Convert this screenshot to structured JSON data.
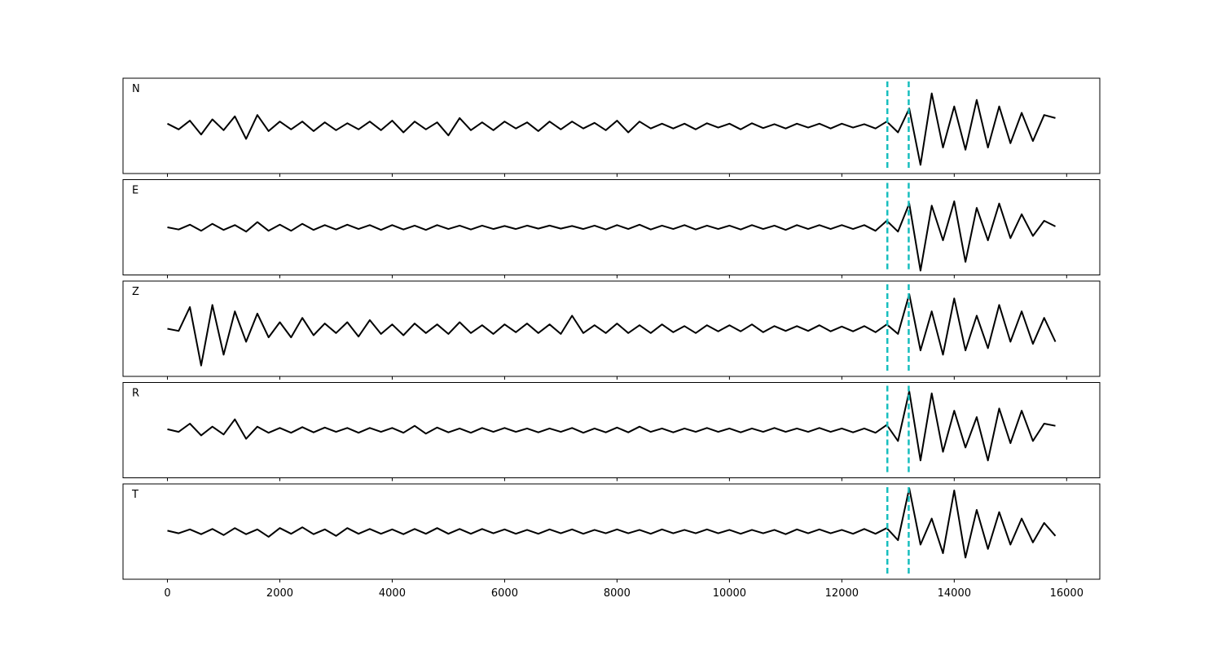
{
  "chart_data": {
    "type": "line",
    "x": [
      0,
      200,
      400,
      600,
      800,
      1000,
      1200,
      1400,
      1600,
      1800,
      2000,
      2200,
      2400,
      2600,
      2800,
      3000,
      3200,
      3400,
      3600,
      3800,
      4000,
      4200,
      4400,
      4600,
      4800,
      5000,
      5200,
      5400,
      5600,
      5800,
      6000,
      6200,
      6400,
      6600,
      6800,
      7000,
      7200,
      7400,
      7600,
      7800,
      8000,
      8200,
      8400,
      8600,
      8800,
      9000,
      9200,
      9400,
      9600,
      9800,
      10000,
      10200,
      10400,
      10600,
      10800,
      11000,
      11200,
      11400,
      11600,
      11800,
      12000,
      12200,
      12400,
      12600,
      12800,
      13000,
      13200,
      13400,
      13600,
      13800,
      14000,
      14200,
      14400,
      14600,
      14800,
      15000,
      15200,
      15400,
      15600,
      15800
    ],
    "series": [
      {
        "name": "N",
        "color": "#000000",
        "values": [
          0.05,
          -0.08,
          0.12,
          -0.2,
          0.15,
          -0.1,
          0.22,
          -0.3,
          0.25,
          -0.12,
          0.1,
          -0.08,
          0.1,
          -0.12,
          0.08,
          -0.1,
          0.06,
          -0.08,
          0.1,
          -0.1,
          0.12,
          -0.15,
          0.1,
          -0.08,
          0.08,
          -0.22,
          0.18,
          -0.1,
          0.08,
          -0.1,
          0.1,
          -0.06,
          0.08,
          -0.12,
          0.1,
          -0.08,
          0.1,
          -0.06,
          0.07,
          -0.1,
          0.12,
          -0.15,
          0.1,
          -0.06,
          0.05,
          -0.06,
          0.05,
          -0.08,
          0.06,
          -0.04,
          0.05,
          -0.08,
          0.06,
          -0.05,
          0.04,
          -0.06,
          0.05,
          -0.04,
          0.05,
          -0.06,
          0.05,
          -0.04,
          0.04,
          -0.06,
          0.1,
          -0.15,
          0.4,
          -0.9,
          0.75,
          -0.5,
          0.45,
          -0.55,
          0.6,
          -0.5,
          0.45,
          -0.4,
          0.3,
          -0.35,
          0.25,
          0.18
        ]
      },
      {
        "name": "E",
        "color": "#000000",
        "values": [
          0.0,
          -0.05,
          0.06,
          -0.08,
          0.08,
          -0.06,
          0.05,
          -0.1,
          0.12,
          -0.08,
          0.06,
          -0.08,
          0.08,
          -0.06,
          0.05,
          -0.05,
          0.06,
          -0.04,
          0.05,
          -0.06,
          0.05,
          -0.05,
          0.04,
          -0.06,
          0.05,
          -0.04,
          0.04,
          -0.05,
          0.04,
          -0.04,
          0.03,
          -0.04,
          0.04,
          -0.03,
          0.04,
          -0.03,
          0.03,
          -0.04,
          0.04,
          -0.05,
          0.05,
          -0.04,
          0.06,
          -0.05,
          0.04,
          -0.04,
          0.05,
          -0.05,
          0.04,
          -0.04,
          0.04,
          -0.05,
          0.05,
          -0.04,
          0.04,
          -0.06,
          0.05,
          -0.04,
          0.05,
          -0.04,
          0.05,
          -0.04,
          0.05,
          -0.08,
          0.15,
          -0.1,
          0.55,
          -1.0,
          0.5,
          -0.3,
          0.6,
          -0.8,
          0.45,
          -0.3,
          0.55,
          -0.25,
          0.3,
          -0.2,
          0.15,
          0.02
        ]
      },
      {
        "name": "Z",
        "color": "#000000",
        "values": [
          0.0,
          -0.05,
          0.5,
          -0.85,
          0.55,
          -0.6,
          0.4,
          -0.3,
          0.35,
          -0.2,
          0.15,
          -0.2,
          0.25,
          -0.15,
          0.12,
          -0.1,
          0.15,
          -0.18,
          0.2,
          -0.12,
          0.1,
          -0.15,
          0.12,
          -0.1,
          0.1,
          -0.12,
          0.15,
          -0.1,
          0.08,
          -0.12,
          0.1,
          -0.08,
          0.12,
          -0.1,
          0.1,
          -0.12,
          0.3,
          -0.1,
          0.08,
          -0.1,
          0.12,
          -0.1,
          0.08,
          -0.1,
          0.1,
          -0.08,
          0.06,
          -0.1,
          0.08,
          -0.06,
          0.08,
          -0.06,
          0.1,
          -0.08,
          0.06,
          -0.05,
          0.06,
          -0.05,
          0.08,
          -0.06,
          0.05,
          -0.06,
          0.06,
          -0.08,
          0.1,
          -0.12,
          0.8,
          -0.5,
          0.4,
          -0.6,
          0.7,
          -0.5,
          0.3,
          -0.45,
          0.55,
          -0.3,
          0.4,
          -0.35,
          0.25,
          -0.3
        ]
      },
      {
        "name": "R",
        "color": "#000000",
        "values": [
          0.02,
          -0.04,
          0.15,
          -0.12,
          0.08,
          -0.1,
          0.25,
          -0.2,
          0.08,
          -0.06,
          0.05,
          -0.06,
          0.07,
          -0.05,
          0.06,
          -0.04,
          0.05,
          -0.06,
          0.05,
          -0.04,
          0.05,
          -0.06,
          0.1,
          -0.08,
          0.06,
          -0.05,
          0.04,
          -0.06,
          0.05,
          -0.04,
          0.05,
          -0.04,
          0.04,
          -0.05,
          0.04,
          -0.04,
          0.05,
          -0.06,
          0.04,
          -0.05,
          0.06,
          -0.05,
          0.08,
          -0.04,
          0.04,
          -0.05,
          0.04,
          -0.04,
          0.05,
          -0.04,
          0.04,
          -0.05,
          0.04,
          -0.04,
          0.05,
          -0.04,
          0.04,
          -0.04,
          0.05,
          -0.04,
          0.04,
          -0.05,
          0.04,
          -0.06,
          0.12,
          -0.25,
          0.9,
          -0.7,
          0.85,
          -0.5,
          0.45,
          -0.4,
          0.3,
          -0.7,
          0.5,
          -0.3,
          0.45,
          -0.25,
          0.15,
          0.1
        ]
      },
      {
        "name": "T",
        "color": "#000000",
        "values": [
          0.02,
          -0.04,
          0.05,
          -0.06,
          0.06,
          -0.08,
          0.08,
          -0.06,
          0.05,
          -0.12,
          0.08,
          -0.05,
          0.1,
          -0.06,
          0.05,
          -0.1,
          0.08,
          -0.05,
          0.06,
          -0.05,
          0.05,
          -0.06,
          0.06,
          -0.05,
          0.08,
          -0.05,
          0.06,
          -0.05,
          0.06,
          -0.04,
          0.05,
          -0.05,
          0.04,
          -0.05,
          0.05,
          -0.04,
          0.05,
          -0.05,
          0.04,
          -0.04,
          0.05,
          -0.04,
          0.04,
          -0.05,
          0.05,
          -0.04,
          0.04,
          -0.04,
          0.05,
          -0.04,
          0.04,
          -0.05,
          0.04,
          -0.04,
          0.04,
          -0.06,
          0.05,
          -0.04,
          0.05,
          -0.04,
          0.04,
          -0.05,
          0.06,
          -0.05,
          0.08,
          -0.2,
          1.0,
          -0.3,
          0.3,
          -0.5,
          0.95,
          -0.6,
          0.5,
          -0.4,
          0.45,
          -0.3,
          0.3,
          -0.25,
          0.2,
          -0.1
        ]
      }
    ],
    "xlim": [
      -790,
      16590
    ],
    "xticks": [
      0,
      2000,
      4000,
      6000,
      8000,
      10000,
      12000,
      14000,
      16000
    ],
    "ylim": [
      -1.1,
      1.1
    ],
    "vlines": [
      12810,
      13190
    ],
    "vline_color": "#17bebe"
  }
}
